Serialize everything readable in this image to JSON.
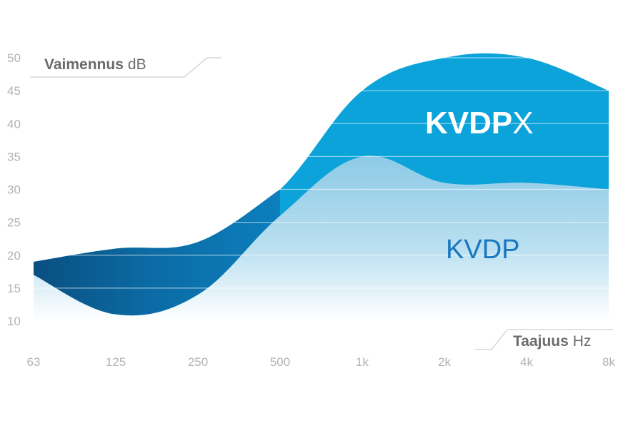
{
  "chart_data": {
    "type": "area",
    "x_categories": [
      "63",
      "125",
      "250",
      "500",
      "1k",
      "2k",
      "4k",
      "8k"
    ],
    "ylim": [
      10,
      50
    ],
    "y_ticks": [
      10,
      15,
      20,
      25,
      30,
      35,
      40,
      45,
      50
    ],
    "y_title_bold": "Vaimennus",
    "y_title_unit": "dB",
    "x_title_bold": "Taajuus",
    "x_title_unit": "Hz",
    "grid": true,
    "series": [
      {
        "name_bold": "KVDP",
        "name_thin": "X",
        "values": [
          19,
          21,
          22,
          30,
          45,
          50,
          50,
          45
        ],
        "color": "#0a9fd6"
      },
      {
        "name": "KVDP",
        "values": [
          17,
          11,
          14,
          26,
          35,
          31,
          31,
          30
        ],
        "color": "#8ecbe6"
      }
    ],
    "colors": {
      "dark_region": "#0a5f93",
      "top_fill": "#0ba3d9",
      "bottom_fill_top": "#87c8e5",
      "bottom_fill_bottom": "#ffffff",
      "grid": "#ffffff",
      "tick_text": "#b3b3b3",
      "title_text": "#6b6b6b",
      "kvdp_label": "#1878c0"
    }
  }
}
